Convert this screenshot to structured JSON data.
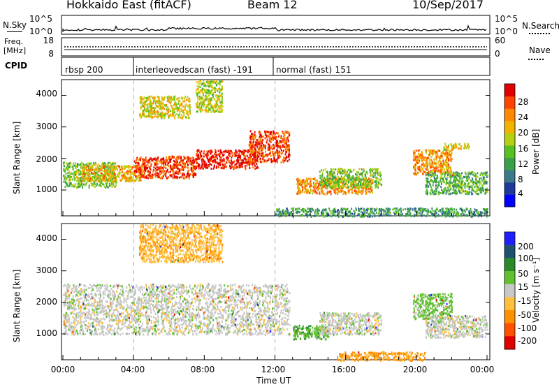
{
  "header": {
    "station": "Hokkaido East (fitACF)",
    "beam": "Beam 12",
    "date": "10/Sep/2017"
  },
  "left_labels": {
    "nsky": "N.Sky",
    "freq": "Freq.",
    "freq_unit": "[MHz]",
    "cpid": "CPID"
  },
  "right_labels": {
    "nsearch": "N.Search",
    "nave": "Nave"
  },
  "strip_ticks": {
    "noise_left_top": "10^5",
    "noise_left_bottom": "10^0",
    "noise_right_top": "10^5",
    "noise_right_bottom": "10^0",
    "freq_top": "18",
    "freq_bottom": "8",
    "nave_top": "60",
    "nave_bottom": "0"
  },
  "cpid_segments": [
    {
      "label": "rbsp 200",
      "start_hour": 0
    },
    {
      "label": "interleovedscan (fast) -191",
      "start_hour": 4
    },
    {
      "label": "normal (fast) 151",
      "start_hour": 12
    }
  ],
  "axes": {
    "ylabel": "Slant Range [km]",
    "xlabel": "Time UT",
    "x_ticks": [
      "00:00",
      "04:00",
      "08:00",
      "12:00",
      "16:00",
      "20:00",
      "00:00"
    ],
    "y_ticks": [
      "1000",
      "2000",
      "3000",
      "4000"
    ]
  },
  "power_scale": {
    "label": "Power [dB]",
    "ticks": [
      "4",
      "8",
      "12",
      "16",
      "20",
      "24",
      "28"
    ],
    "colors": [
      "#0000ff",
      "#1e3a9a",
      "#3c7a8a",
      "#3aa04a",
      "#58c020",
      "#b4d010",
      "#f0b400",
      "#ff8800",
      "#ff4400",
      "#e00000"
    ]
  },
  "velocity_scale": {
    "label": "Velocity [m s⁻¹]",
    "ticks": [
      "200",
      "100",
      "50",
      "15",
      "-15",
      "-50",
      "-100",
      "-200"
    ],
    "colors": [
      "#2020ff",
      "#205070",
      "#2a8a2a",
      "#60c030",
      "#c8c8c8",
      "#ffc040",
      "#ff9000",
      "#ff5000",
      "#e00000"
    ]
  },
  "chart_data": [
    {
      "type": "heatmap",
      "panel": "power",
      "x_unit": "hour UT",
      "xlim": [
        0,
        24
      ],
      "ylim": [
        180,
        4500
      ],
      "colorbar_range": [
        0,
        30
      ],
      "xlabel": "Time UT",
      "ylabel": "Slant Range [km]",
      "clabel": "Power [dB]",
      "echo_regions": [
        {
          "x_start": 0.0,
          "x_end": 3.0,
          "range_start": 1100,
          "range_end": 1900,
          "power": 14
        },
        {
          "x_start": 1.0,
          "x_end": 4.5,
          "range_start": 1300,
          "range_end": 1800,
          "power": 20
        },
        {
          "x_start": 4.0,
          "x_end": 7.5,
          "range_start": 1400,
          "range_end": 2100,
          "power": 26
        },
        {
          "x_start": 7.5,
          "x_end": 11.0,
          "range_start": 1700,
          "range_end": 2300,
          "power": 28
        },
        {
          "x_start": 10.5,
          "x_end": 12.8,
          "range_start": 1900,
          "range_end": 2900,
          "power": 26
        },
        {
          "x_start": 4.3,
          "x_end": 7.2,
          "range_start": 3300,
          "range_end": 4000,
          "power": 18
        },
        {
          "x_start": 7.5,
          "x_end": 9.0,
          "range_start": 3500,
          "range_end": 4500,
          "power": 16
        },
        {
          "x_start": 13.2,
          "x_end": 17.5,
          "range_start": 900,
          "range_end": 1400,
          "power": 22
        },
        {
          "x_start": 14.5,
          "x_end": 18.0,
          "range_start": 1100,
          "range_end": 1700,
          "power": 14
        },
        {
          "x_start": 19.8,
          "x_end": 22.0,
          "range_start": 1500,
          "range_end": 2300,
          "power": 22
        },
        {
          "x_start": 20.5,
          "x_end": 24.0,
          "range_start": 900,
          "range_end": 1600,
          "power": 12
        },
        {
          "x_start": 21.5,
          "x_end": 23.0,
          "range_start": 2300,
          "range_end": 2500,
          "power": 18
        },
        {
          "x_start": 12.0,
          "x_end": 24.0,
          "range_start": 180,
          "range_end": 450,
          "power": 10
        }
      ]
    },
    {
      "type": "heatmap",
      "panel": "velocity",
      "x_unit": "hour UT",
      "xlim": [
        0,
        24
      ],
      "ylim": [
        180,
        4500
      ],
      "colorbar_range": [
        -250,
        250
      ],
      "xlabel": "Time UT",
      "ylabel": "Slant Range [km]",
      "clabel": "Velocity [m s⁻¹]",
      "echo_regions": [
        {
          "x_start": 0.0,
          "x_end": 12.8,
          "range_start": 1000,
          "range_end": 2600,
          "velocity": 0
        },
        {
          "x_start": 4.3,
          "x_end": 9.0,
          "range_start": 3300,
          "range_end": 4500,
          "velocity": -40
        },
        {
          "x_start": 13.0,
          "x_end": 15.0,
          "range_start": 850,
          "range_end": 1300,
          "velocity": 40
        },
        {
          "x_start": 14.5,
          "x_end": 18.0,
          "range_start": 1000,
          "range_end": 1700,
          "velocity": 0
        },
        {
          "x_start": 15.5,
          "x_end": 20.5,
          "range_start": 180,
          "range_end": 450,
          "velocity": -60
        },
        {
          "x_start": 19.8,
          "x_end": 22.0,
          "range_start": 1500,
          "range_end": 2300,
          "velocity": 30
        },
        {
          "x_start": 20.5,
          "x_end": 24.0,
          "range_start": 900,
          "range_end": 1600,
          "velocity": 0
        }
      ]
    }
  ]
}
